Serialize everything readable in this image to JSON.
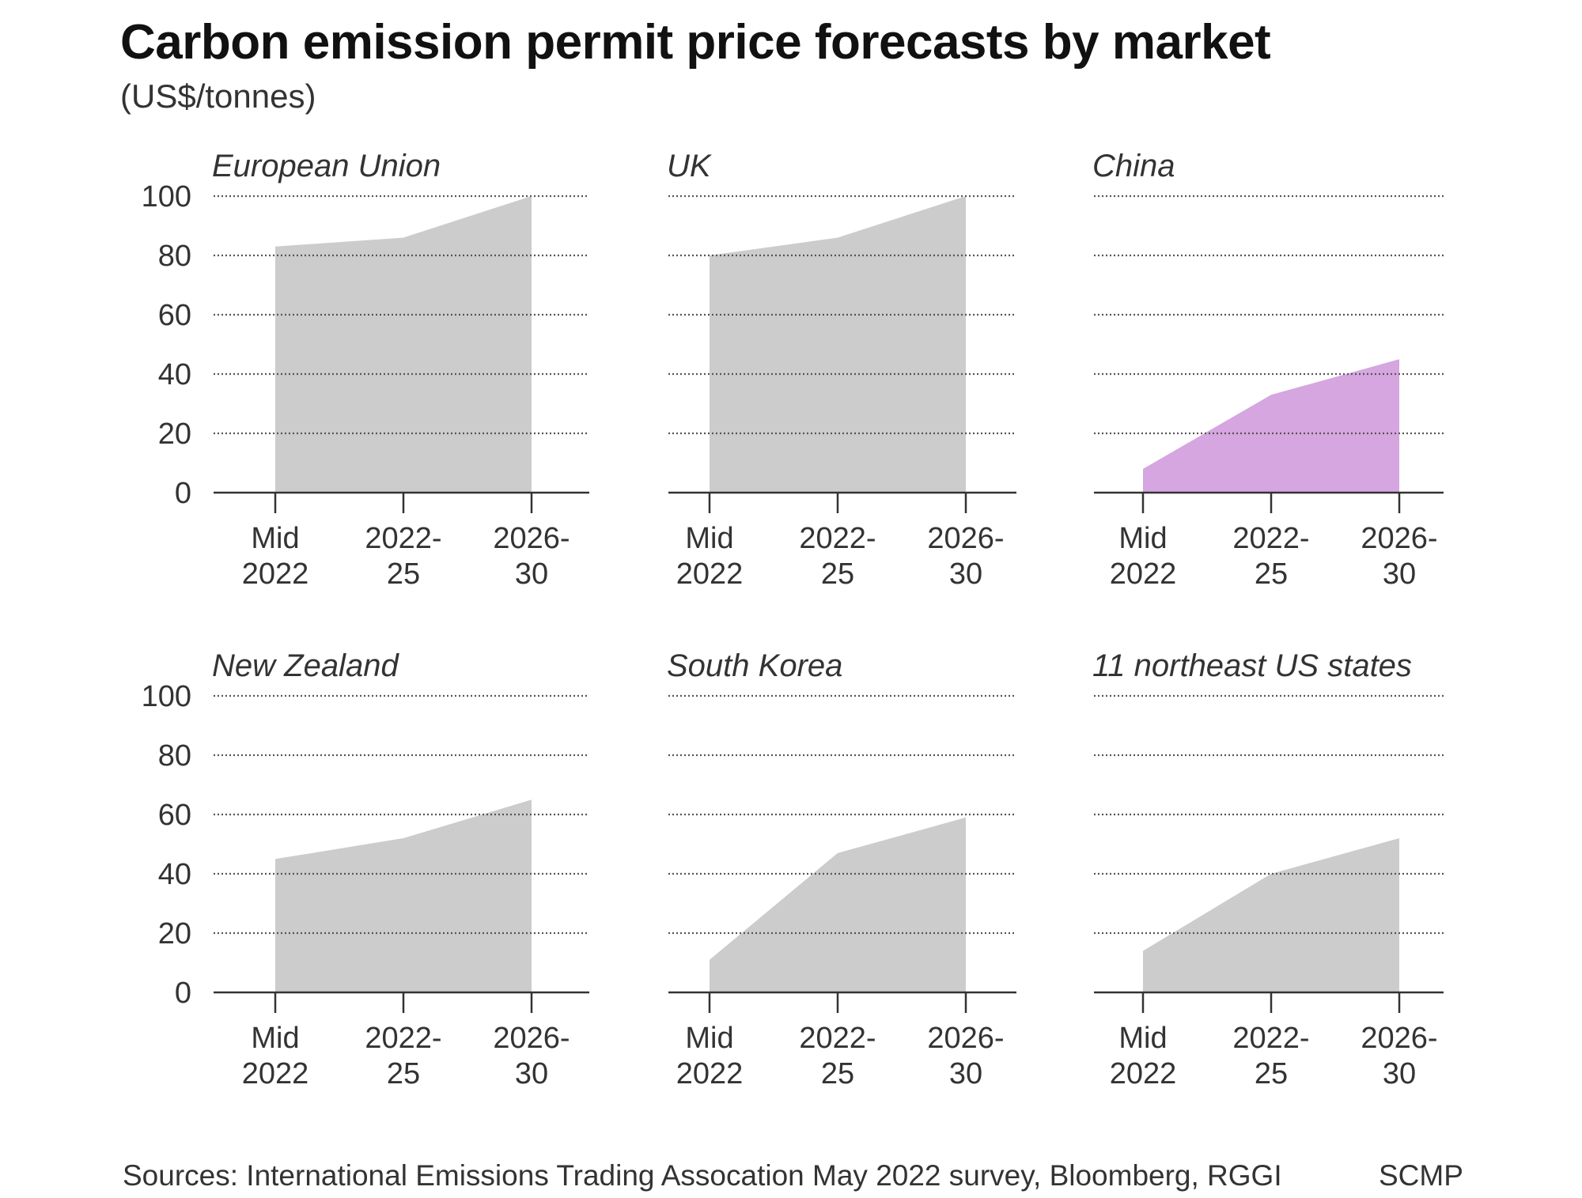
{
  "title": "Carbon emission permit price forecasts by market",
  "subtitle": "(US$/tonnes)",
  "footer": {
    "sources": "Sources: International Emissions Trading Assocation May 2022 survey, Bloomberg, RGGI",
    "credit": "SCMP"
  },
  "colors": {
    "default_area": "#cccccc",
    "highlight_area": "#d5a6df",
    "gridline": "#555555",
    "axis": "#333333"
  },
  "chart_data": [
    {
      "type": "area",
      "title": "European Union",
      "categories": [
        [
          "Mid",
          "2022"
        ],
        [
          "2022-",
          "25"
        ],
        [
          "2026-",
          "30"
        ]
      ],
      "values": [
        83,
        86,
        100
      ],
      "ylim": [
        0,
        100
      ],
      "yticks": [
        "0",
        "20",
        "40",
        "60",
        "80",
        "100"
      ],
      "grid": true,
      "color": "#cccccc"
    },
    {
      "type": "area",
      "title": "UK",
      "categories": [
        [
          "Mid",
          "2022"
        ],
        [
          "2022-",
          "25"
        ],
        [
          "2026-",
          "30"
        ]
      ],
      "values": [
        80,
        86,
        100
      ],
      "ylim": [
        0,
        100
      ],
      "grid": true,
      "color": "#cccccc"
    },
    {
      "type": "area",
      "title": "China",
      "categories": [
        [
          "Mid",
          "2022"
        ],
        [
          "2022-",
          "25"
        ],
        [
          "2026-",
          "30"
        ]
      ],
      "values": [
        8,
        33,
        45
      ],
      "ylim": [
        0,
        100
      ],
      "grid": true,
      "color": "#d5a6df"
    },
    {
      "type": "area",
      "title": "New Zealand",
      "categories": [
        [
          "Mid",
          "2022"
        ],
        [
          "2022-",
          "25"
        ],
        [
          "2026-",
          "30"
        ]
      ],
      "values": [
        45,
        52,
        65
      ],
      "ylim": [
        0,
        100
      ],
      "yticks": [
        "0",
        "20",
        "40",
        "60",
        "80",
        "100"
      ],
      "grid": true,
      "color": "#cccccc"
    },
    {
      "type": "area",
      "title": "South Korea",
      "categories": [
        [
          "Mid",
          "2022"
        ],
        [
          "2022-",
          "25"
        ],
        [
          "2026-",
          "30"
        ]
      ],
      "values": [
        11,
        47,
        59
      ],
      "ylim": [
        0,
        100
      ],
      "grid": true,
      "color": "#cccccc"
    },
    {
      "type": "area",
      "title": "11 northeast US states",
      "categories": [
        [
          "Mid",
          "2022"
        ],
        [
          "2022-",
          "25"
        ],
        [
          "2026-",
          "30"
        ]
      ],
      "values": [
        14,
        40,
        52
      ],
      "ylim": [
        0,
        100
      ],
      "grid": true,
      "color": "#cccccc"
    }
  ]
}
